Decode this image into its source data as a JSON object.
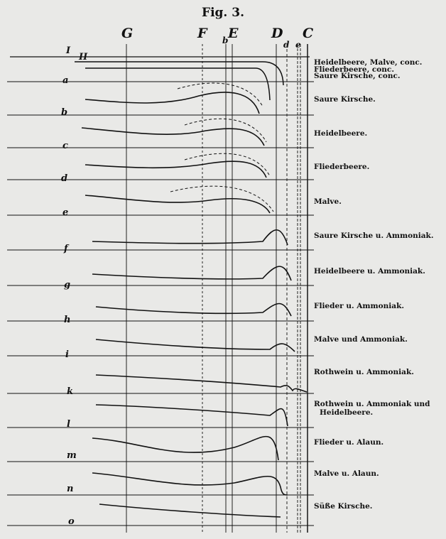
{
  "figure_title": "Fig. 3.",
  "spectral_lines": {
    "G": "G",
    "F": "F",
    "b": "b",
    "E": "E",
    "D": "D",
    "d": "d",
    "e": "e",
    "C": "C"
  },
  "conc_curves": [
    "I",
    "II"
  ],
  "rows": [
    {
      "letter": "a",
      "label": "Heidelbeere, Malve, conc.",
      "label2": "Fliederbeere, conc.",
      "label3": "Saure Kirsche, conc."
    },
    {
      "letter": "b",
      "label": "Saure Kirsche."
    },
    {
      "letter": "c",
      "label": "Heidelbeere."
    },
    {
      "letter": "d",
      "label": "Fliederbeere."
    },
    {
      "letter": "e",
      "label": "Malve."
    },
    {
      "letter": "f",
      "label": "Saure Kirsche u. Ammoniak."
    },
    {
      "letter": "g",
      "label": "Heidelbeere u. Ammoniak."
    },
    {
      "letter": "h",
      "label": "Flieder u. Ammoniak."
    },
    {
      "letter": "i",
      "label": "Malve und Ammoniak."
    },
    {
      "letter": "k",
      "label": "Rothwein u. Ammoniak."
    },
    {
      "letter": "l",
      "label": "Rothwein u. Ammoniak und",
      "label2": "Heidelbeere."
    },
    {
      "letter": "m",
      "label": "Flieder u. Alaun."
    },
    {
      "letter": "n",
      "label": "Malve u. Alaun."
    },
    {
      "letter": "o",
      "label": "Süße Kirsche."
    }
  ]
}
